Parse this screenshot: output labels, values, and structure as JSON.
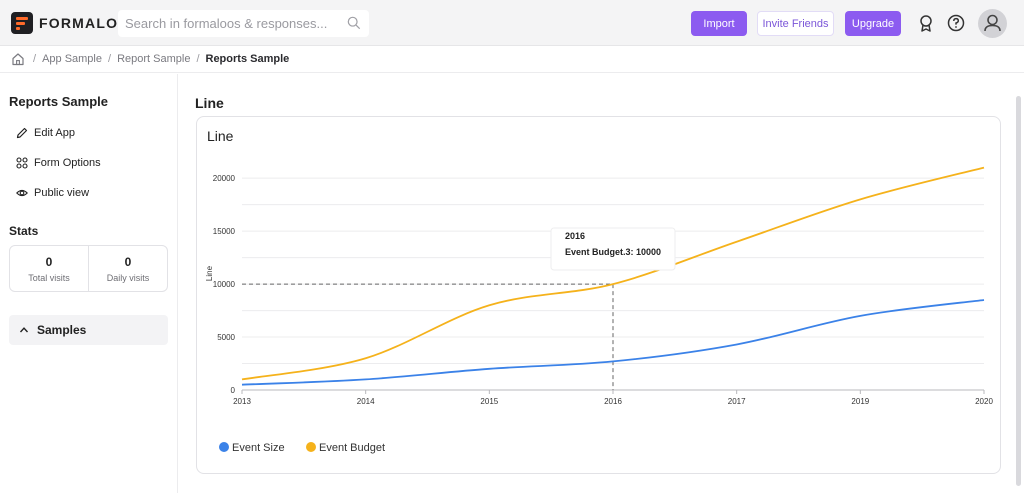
{
  "header": {
    "logo_text": "FORMALOO",
    "search_placeholder": "Search in formaloos & responses...",
    "import_label": "Import",
    "invite_label": "Invite Friends",
    "upgrade_label": "Upgrade",
    "accent_color": "#8c5bf0"
  },
  "breadcrumb": {
    "items": [
      "App Sample",
      "Report Sample"
    ],
    "current": "Reports Sample"
  },
  "sidebar": {
    "title": "Reports Sample",
    "items": [
      {
        "label": "Edit App",
        "icon": "pencil-icon"
      },
      {
        "label": "Form Options",
        "icon": "grid-icon"
      },
      {
        "label": "Public view",
        "icon": "eye-icon"
      }
    ],
    "stats_title": "Stats",
    "stats": [
      {
        "value": "0",
        "label": "Total visits"
      },
      {
        "value": "0",
        "label": "Daily visits"
      }
    ],
    "samples_label": "Samples"
  },
  "main": {
    "title": "Line",
    "card_title": "Line"
  },
  "chart_data": {
    "type": "line",
    "ylabel": "Line",
    "x": [
      "2013",
      "2014",
      "2015",
      "2016",
      "2017",
      "2019",
      "2020"
    ],
    "y_ticks": [
      "0",
      "5000",
      "10000",
      "15000",
      "20000"
    ],
    "ylim": [
      0,
      22000
    ],
    "series": [
      {
        "name": "Event Size",
        "color": "#3b82e8",
        "values": [
          500,
          1000,
          2000,
          2700,
          4300,
          7000,
          8500
        ]
      },
      {
        "name": "Event Budget",
        "color": "#f5b21b",
        "values": [
          1000,
          3000,
          8000,
          10000,
          14000,
          18000,
          21000
        ]
      }
    ],
    "tooltip": {
      "title": "2016",
      "text": "Event Budget.3: 10000"
    },
    "grid": true,
    "legend_position": "bottom-left"
  }
}
